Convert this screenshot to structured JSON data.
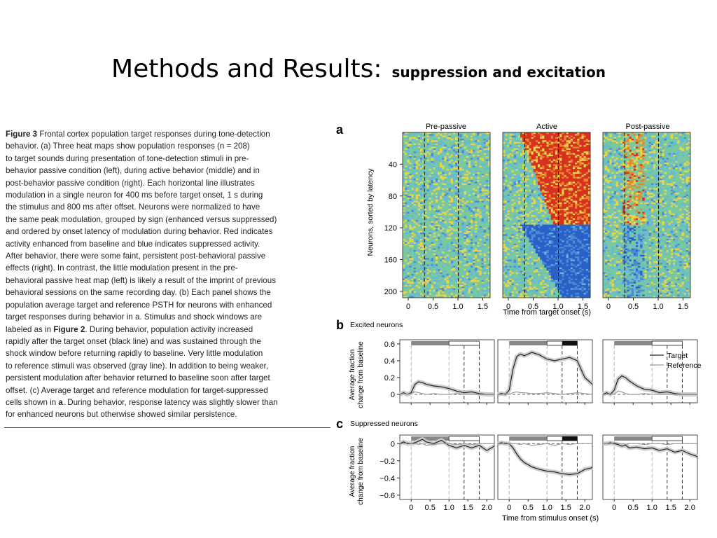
{
  "slide": {
    "title": "Methods and Results:",
    "subtitle": "suppression and excitation"
  },
  "caption": {
    "lines": [
      [
        {
          "t": "Figure 3",
          "b": true
        },
        {
          "t": "  Frontal cortex population target responses during tone-detection"
        }
      ],
      [
        {
          "t": "behavior. (a) Three heat maps show population responses (n = 208)"
        }
      ],
      [
        {
          "t": "to target sounds during presentation of tone-detection stimuli in pre-"
        }
      ],
      [
        {
          "t": "behavior passive condition (left), during active behavior (middle) and in"
        }
      ],
      [
        {
          "t": "post-behavior passive condition (right). Each horizontal line illustrates"
        }
      ],
      [
        {
          "t": "modulation in a single neuron for 400 ms before target onset, 1 s during"
        }
      ],
      [
        {
          "t": "the stimulus and 800 ms after offset. Neurons were normalized to have"
        }
      ],
      [
        {
          "t": "the same peak modulation, grouped by sign (enhanced versus suppressed)"
        }
      ],
      [
        {
          "t": "and ordered by onset latency of modulation during behavior. Red indicates"
        }
      ],
      [
        {
          "t": "activity enhanced from baseline and blue indicates suppressed activity."
        }
      ],
      [
        {
          "t": "After behavior, there were some faint, persistent post-behavioral passive"
        }
      ],
      [
        {
          "t": "effects (right). In contrast, the little modulation present in the pre-"
        }
      ],
      [
        {
          "t": "behavioral passive heat map (left) is likely a result of the imprint of previous"
        }
      ],
      [
        {
          "t": "behavioral sessions on the same recording day. (b) Each panel shows the"
        }
      ],
      [
        {
          "t": "population average target and reference PSTH for neurons with enhanced"
        }
      ],
      [
        {
          "t": "target responses during behavior in a. Stimulus and shock windows are"
        }
      ],
      [
        {
          "t": "labeled as in "
        },
        {
          "t": "Figure 2",
          "b": true
        },
        {
          "t": ". During behavior, population activity increased"
        }
      ],
      [
        {
          "t": "rapidly after the target onset (black line) and was sustained through the"
        }
      ],
      [
        {
          "t": "shock window before returning rapidly to baseline. Very little modulation"
        }
      ],
      [
        {
          "t": "to reference stimuli was observed (gray line). In addition to being weaker,"
        }
      ],
      [
        {
          "t": "persistent modulation after behavior returned to baseline soon after target"
        }
      ],
      [
        {
          "t": "offset. (c) Average target and reference modulation for target-suppressed"
        }
      ],
      [
        {
          "t": "cells shown in "
        },
        {
          "t": "a",
          "b": true
        },
        {
          "t": ". During behavior, response latency was slightly slower than"
        }
      ],
      [
        {
          "t": "for enhanced neurons but otherwise showed similar persistence."
        }
      ]
    ]
  },
  "figure": {
    "panel_a": {
      "label": "a",
      "titles": [
        "Pre-passive",
        "Active",
        "Post-passive"
      ],
      "ylabel": "Neurons, sorted by latency",
      "yticks": [
        "40",
        "80",
        "120",
        "160",
        "200"
      ],
      "xticks": [
        "0",
        "0.5",
        "1.0",
        "1.5"
      ],
      "xlabel": "Time from target onset (s)",
      "colors": {
        "enhanced": "#d83020",
        "suppressed": "#2a5fc8",
        "baseline": "#78c8a0"
      }
    },
    "panel_b": {
      "label": "b",
      "title": "Excited neurons",
      "ylabel": [
        "Average fraction",
        "change from baseline"
      ],
      "yticks": [
        "0.6",
        "0.4",
        "0.2",
        "0"
      ],
      "legend": [
        "Target",
        "Reference"
      ]
    },
    "panel_c": {
      "label": "c",
      "title": "Suppressed neurons",
      "ylabel": [
        "Average fraction",
        "change from baseline"
      ],
      "yticks": [
        "0",
        "−0.2",
        "−0.4",
        "−0.6"
      ],
      "xticks": [
        "0",
        "0.5",
        "1.0",
        "1.5",
        "2.0"
      ],
      "xlabel": "Time from stimulus onset (s)"
    }
  },
  "chart_data": [
    {
      "type": "line",
      "title": "Excited neurons",
      "xlabel": "",
      "ylabel": "Average fraction change from baseline",
      "ylim": [
        -0.1,
        0.65
      ],
      "xlim": [
        -0.3,
        2.2
      ],
      "panels": [
        {
          "condition": "Pre-passive",
          "x": [
            -0.3,
            -0.2,
            -0.1,
            0,
            0.1,
            0.2,
            0.3,
            0.4,
            0.6,
            0.8,
            1.0,
            1.2,
            1.4,
            1.6,
            1.8,
            2.0,
            2.2
          ],
          "series": [
            {
              "name": "Target",
              "values": [
                0.0,
                0.02,
                0.0,
                0.02,
                0.12,
                0.15,
                0.14,
                0.12,
                0.1,
                0.09,
                0.07,
                0.04,
                0.02,
                0.03,
                0.01,
                0.0,
                0.0
              ]
            },
            {
              "name": "Reference",
              "values": [
                0.0,
                0.01,
                0.0,
                0.01,
                0.03,
                0.02,
                0.01,
                0.0,
                0.01,
                0.0,
                0.0,
                0.01,
                0.0,
                0.0,
                0.0,
                0.0,
                0.0
              ]
            }
          ]
        },
        {
          "condition": "Active",
          "x": [
            -0.3,
            -0.2,
            -0.1,
            0,
            0.1,
            0.2,
            0.3,
            0.4,
            0.6,
            0.8,
            1.0,
            1.2,
            1.4,
            1.6,
            1.8,
            2.0,
            2.2
          ],
          "series": [
            {
              "name": "Target",
              "values": [
                0.0,
                0.01,
                0.0,
                0.05,
                0.3,
                0.45,
                0.48,
                0.46,
                0.5,
                0.47,
                0.42,
                0.4,
                0.42,
                0.44,
                0.4,
                0.2,
                0.12
              ]
            },
            {
              "name": "Reference",
              "values": [
                0.0,
                0.0,
                0.01,
                0.0,
                0.02,
                0.03,
                0.02,
                0.02,
                0.01,
                0.01,
                0.02,
                0.01,
                0.0,
                0.01,
                0.02,
                0.01,
                0.0
              ]
            }
          ]
        },
        {
          "condition": "Post-passive",
          "x": [
            -0.3,
            -0.2,
            -0.1,
            0,
            0.1,
            0.2,
            0.3,
            0.4,
            0.6,
            0.8,
            1.0,
            1.2,
            1.4,
            1.6,
            1.8,
            2.0,
            2.2
          ],
          "series": [
            {
              "name": "Target",
              "values": [
                0.0,
                0.02,
                0.0,
                0.05,
                0.18,
                0.22,
                0.2,
                0.16,
                0.1,
                0.06,
                0.05,
                0.02,
                0.03,
                0.01,
                0.0,
                0.0,
                0.0
              ]
            },
            {
              "name": "Reference",
              "values": [
                0.0,
                0.0,
                0.01,
                0.0,
                0.04,
                0.03,
                0.01,
                0.0,
                0.0,
                0.01,
                0.0,
                0.0,
                0.0,
                0.0,
                0.0,
                0.0,
                0.0
              ]
            }
          ]
        }
      ]
    },
    {
      "type": "line",
      "title": "Suppressed neurons",
      "xlabel": "Time from stimulus onset (s)",
      "ylabel": "Average fraction change from baseline",
      "ylim": [
        -0.65,
        0.1
      ],
      "xlim": [
        -0.3,
        2.2
      ],
      "panels": [
        {
          "condition": "Pre-passive",
          "x": [
            -0.3,
            -0.2,
            -0.1,
            0,
            0.1,
            0.2,
            0.3,
            0.4,
            0.6,
            0.8,
            1.0,
            1.2,
            1.4,
            1.6,
            1.8,
            2.0,
            2.2
          ],
          "series": [
            {
              "name": "Target",
              "values": [
                0.0,
                0.02,
                0.0,
                0.0,
                0.01,
                0.03,
                0.05,
                0.02,
                0.0,
                0.04,
                -0.02,
                -0.05,
                -0.02,
                -0.05,
                -0.02,
                -0.08,
                -0.03
              ]
            },
            {
              "name": "Reference",
              "values": [
                0.0,
                0.0,
                0.01,
                0.0,
                0.0,
                -0.01,
                0.0,
                -0.02,
                -0.01,
                0.0,
                0.0,
                -0.01,
                0.0,
                -0.01,
                0.0,
                0.0,
                0.0
              ]
            }
          ]
        },
        {
          "condition": "Active",
          "x": [
            -0.3,
            -0.2,
            -0.1,
            0,
            0.1,
            0.2,
            0.3,
            0.4,
            0.6,
            0.8,
            1.0,
            1.2,
            1.4,
            1.6,
            1.8,
            2.0,
            2.2
          ],
          "series": [
            {
              "name": "Target",
              "values": [
                0.0,
                0.01,
                0.0,
                0.0,
                -0.05,
                -0.12,
                -0.18,
                -0.22,
                -0.27,
                -0.3,
                -0.32,
                -0.33,
                -0.35,
                -0.36,
                -0.35,
                -0.3,
                -0.28
              ]
            },
            {
              "name": "Reference",
              "values": [
                0.0,
                0.0,
                0.01,
                0.0,
                0.0,
                0.0,
                -0.01,
                0.0,
                -0.02,
                -0.01,
                0.0,
                -0.02,
                0.0,
                -0.01,
                0.0,
                0.0,
                0.0
              ]
            }
          ]
        },
        {
          "condition": "Post-passive",
          "x": [
            -0.3,
            -0.2,
            -0.1,
            0,
            0.1,
            0.2,
            0.3,
            0.4,
            0.6,
            0.8,
            1.0,
            1.2,
            1.4,
            1.6,
            1.8,
            2.0,
            2.2
          ],
          "series": [
            {
              "name": "Target",
              "values": [
                0.0,
                0.0,
                0.01,
                0.0,
                -0.01,
                -0.03,
                -0.02,
                -0.05,
                -0.04,
                -0.06,
                -0.05,
                -0.08,
                -0.06,
                -0.1,
                -0.08,
                -0.12,
                -0.15
              ]
            },
            {
              "name": "Reference",
              "values": [
                0.0,
                0.0,
                0.0,
                0.01,
                0.0,
                0.0,
                -0.01,
                0.0,
                0.0,
                -0.01,
                0.0,
                0.0,
                -0.01,
                0.0,
                0.0,
                0.0,
                0.0
              ]
            }
          ]
        }
      ]
    }
  ]
}
